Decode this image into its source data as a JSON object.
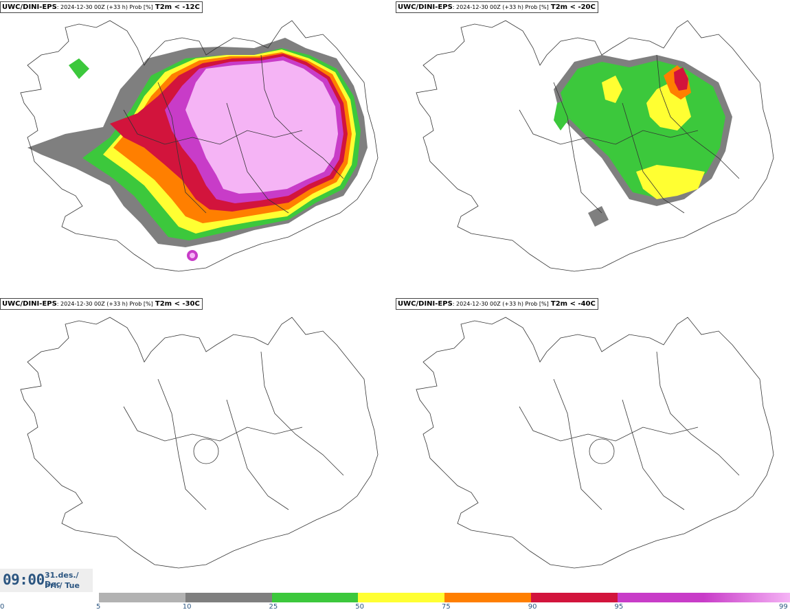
{
  "panels": [
    {
      "source": "UWC/DINI-EPS",
      "meta": "2024-12-30 00Z (+33 h) Prob [%]",
      "variable": "T2m < -12C",
      "filled": "high"
    },
    {
      "source": "UWC/DINI-EPS",
      "meta": "2024-12-30 00Z (+33 h) Prob [%]",
      "variable": "T2m < -20C",
      "filled": "medium"
    },
    {
      "source": "UWC/DINI-EPS",
      "meta": "2024-12-30 00Z (+33 h) Prob [%]",
      "variable": "T2m < -30C",
      "filled": "none"
    },
    {
      "source": "UWC/DINI-EPS",
      "meta": "2024-12-30 00Z (+33 h) Prob [%]",
      "variable": "T2m < -40C",
      "filled": "none"
    }
  ],
  "valid_time": {
    "time": "09:00",
    "date_line1": "31.des./ Dec",
    "date_line2": "Þri./ Tue"
  },
  "colorbar": {
    "levels": [
      "0",
      "5",
      "10",
      "25",
      "50",
      "75",
      "90",
      "95",
      "99"
    ],
    "colors": [
      "#b2b2b2",
      "#7f7f7f",
      "#3cc83c",
      "#ffff32",
      "#ff7f00",
      "#d2143c",
      "#c83cc8",
      "#f5b4f5"
    ]
  },
  "palette": {
    "light_gray": "#b2b2b2",
    "dark_gray": "#7f7f7f",
    "green": "#3cc83c",
    "yellow": "#ffff32",
    "orange": "#ff7f00",
    "red": "#d2143c",
    "magenta": "#c83cc8",
    "pink": "#f5b4f5"
  }
}
